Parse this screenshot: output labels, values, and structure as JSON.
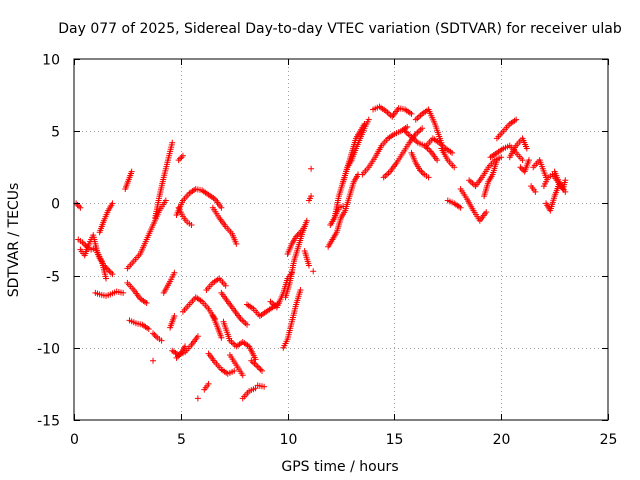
{
  "chart_data": {
    "type": "scatter",
    "title": "Day 077 of 2025, Sidereal Day-to-day VTEC variation (SDTVAR) for receiver ulab",
    "xlabel": "GPS time / hours",
    "ylabel": "SDTVAR / TECUs",
    "xlim": [
      0,
      25
    ],
    "ylim": [
      -15,
      10
    ],
    "xticks": [
      0,
      5,
      10,
      15,
      20,
      25
    ],
    "yticks": [
      -15,
      -10,
      -5,
      0,
      5,
      10
    ],
    "grid": true,
    "marker": "+",
    "color": "#ff0000",
    "tracks": [
      {
        "x": [
          0.2,
          0.4,
          0.6,
          0.8,
          1.0,
          1.2,
          1.4,
          1.6,
          1.8
        ],
        "y": [
          -2.5,
          -2.7,
          -3.0,
          -3.2,
          -3.1,
          -3.8,
          -4.3,
          -4.6,
          -4.9
        ]
      },
      {
        "x": [
          0.3,
          0.5,
          0.7,
          0.9,
          1.1,
          1.3,
          1.5
        ],
        "y": [
          -3.2,
          -3.6,
          -2.8,
          -2.2,
          -3.4,
          -4.0,
          -5.2
        ]
      },
      {
        "x": [
          1.0,
          1.2,
          1.5,
          1.7,
          2.0,
          2.3
        ],
        "y": [
          -6.2,
          -6.3,
          -6.4,
          -6.3,
          -6.1,
          -6.2
        ]
      },
      {
        "x": [
          1.2,
          1.4,
          1.6,
          1.8
        ],
        "y": [
          -2.0,
          -1.2,
          -0.5,
          0.0
        ]
      },
      {
        "x": [
          2.4,
          2.6,
          2.7
        ],
        "y": [
          1.0,
          1.8,
          2.2
        ]
      },
      {
        "x": [
          2.5,
          2.8,
          3.1,
          3.4
        ],
        "y": [
          -5.5,
          -6.0,
          -6.6,
          -6.9
        ]
      },
      {
        "x": [
          2.6,
          2.9,
          3.2,
          3.5
        ],
        "y": [
          -8.1,
          -8.3,
          -8.4,
          -8.7
        ]
      },
      {
        "x": [
          2.5,
          2.8,
          3.1,
          3.4,
          3.7,
          4.0,
          4.3
        ],
        "y": [
          -4.5,
          -4.0,
          -3.5,
          -2.5,
          -1.5,
          -0.5,
          0.2
        ]
      },
      {
        "x": [
          3.7,
          3.9,
          4.1
        ],
        "y": [
          -9.0,
          -9.3,
          -9.5
        ]
      },
      {
        "x": [
          3.8,
          4.0,
          4.2,
          4.4,
          4.6
        ],
        "y": [
          -1.0,
          0.5,
          1.8,
          3.0,
          4.2
        ]
      },
      {
        "x": [
          4.2,
          4.5,
          4.7
        ],
        "y": [
          -6.2,
          -5.4,
          -4.8
        ]
      },
      {
        "x": [
          4.5,
          4.7
        ],
        "y": [
          -8.6,
          -7.8
        ]
      },
      {
        "x": [
          4.6,
          4.9,
          5.2,
          5.5,
          5.8
        ],
        "y": [
          -10.2,
          -10.5,
          -10.3,
          -9.8,
          -9.2
        ]
      },
      {
        "x": [
          4.8,
          5.0,
          5.2
        ],
        "y": [
          -10.7,
          -10.4,
          -9.9
        ]
      },
      {
        "x": [
          4.8,
          5.1,
          5.4,
          5.7,
          6.0,
          6.3,
          6.6,
          6.9
        ],
        "y": [
          -0.8,
          0.2,
          0.7,
          1.0,
          0.9,
          0.6,
          0.3,
          -0.3
        ]
      },
      {
        "x": [
          4.9,
          5.1,
          5.3,
          5.5
        ],
        "y": [
          -0.3,
          -0.9,
          -1.3,
          -1.5
        ]
      },
      {
        "x": [
          4.9,
          5.1
        ],
        "y": [
          3.0,
          3.3
        ]
      },
      {
        "x": [
          5.1,
          5.4,
          5.7,
          6.0,
          6.3,
          6.6
        ],
        "y": [
          -7.5,
          -7.0,
          -6.5,
          -6.8,
          -7.3,
          -8.0
        ]
      },
      {
        "x": [
          3.7
        ],
        "y": [
          -10.9
        ]
      },
      {
        "x": [
          5.8
        ],
        "y": [
          -13.5
        ]
      },
      {
        "x": [
          6.1,
          6.3
        ],
        "y": [
          -12.9,
          -12.5
        ]
      },
      {
        "x": [
          6.2,
          6.5,
          6.8,
          7.1
        ],
        "y": [
          -6.0,
          -5.5,
          -5.2,
          -5.7
        ]
      },
      {
        "x": [
          6.3,
          6.6,
          6.9,
          7.2,
          7.5
        ],
        "y": [
          -10.4,
          -11.0,
          -11.5,
          -11.8,
          -11.6
        ]
      },
      {
        "x": [
          6.5,
          6.7,
          6.9
        ],
        "y": [
          -7.8,
          -8.5,
          -9.3
        ]
      },
      {
        "x": [
          6.5,
          6.8,
          7.1,
          7.4,
          7.6
        ],
        "y": [
          -0.3,
          -1.0,
          -1.6,
          -2.1,
          -2.8
        ]
      },
      {
        "x": [
          6.9,
          7.2,
          7.5,
          7.8,
          8.1
        ],
        "y": [
          -6.2,
          -6.8,
          -7.4,
          -8.0,
          -8.4
        ]
      },
      {
        "x": [
          7.0,
          7.3,
          7.6,
          7.9,
          8.2,
          8.5
        ],
        "y": [
          -8.2,
          -9.5,
          -9.9,
          -9.6,
          -9.9,
          -10.8
        ]
      },
      {
        "x": [
          7.3,
          7.6,
          7.9
        ],
        "y": [
          -10.5,
          -11.2,
          -11.9
        ]
      },
      {
        "x": [
          7.9,
          8.2,
          8.5
        ],
        "y": [
          -13.5,
          -13.0,
          -12.8
        ]
      },
      {
        "x": [
          8.6,
          8.9
        ],
        "y": [
          -12.6,
          -12.7
        ]
      },
      {
        "x": [
          8.1,
          8.4,
          8.7,
          9.0,
          9.3,
          9.6
        ],
        "y": [
          -7.0,
          -7.3,
          -7.8,
          -7.5,
          -7.2,
          -6.9
        ]
      },
      {
        "x": [
          8.3,
          8.6,
          8.8
        ],
        "y": [
          -10.9,
          -11.3,
          -11.6
        ]
      },
      {
        "x": [
          9.2,
          9.5,
          9.8,
          10.0,
          10.2
        ],
        "y": [
          -6.8,
          -7.2,
          -6.2,
          -5.2,
          -4.8
        ]
      },
      {
        "x": [
          9.8,
          10.0,
          10.2,
          10.4,
          10.6
        ],
        "y": [
          -10.0,
          -9.4,
          -8.2,
          -7.0,
          -6.0
        ]
      },
      {
        "x": [
          9.9,
          10.1,
          10.3,
          10.5,
          10.7,
          10.9
        ],
        "y": [
          -6.5,
          -5.5,
          -4.0,
          -3.0,
          -2.0,
          -1.2
        ]
      },
      {
        "x": [
          10.0,
          10.2,
          10.4,
          10.6,
          10.8
        ],
        "y": [
          -3.5,
          -2.8,
          -2.3,
          -2.0,
          -1.6
        ]
      },
      {
        "x": [
          10.8,
          11.0
        ],
        "y": [
          -3.3,
          -4.3
        ]
      },
      {
        "x": [
          11.0,
          11.1
        ],
        "y": [
          0.2,
          0.5
        ]
      },
      {
        "x": [
          11.1
        ],
        "y": [
          2.4
        ]
      },
      {
        "x": [
          11.2
        ],
        "y": [
          -4.7
        ]
      },
      {
        "x": [
          11.9,
          12.1,
          12.3,
          12.5,
          12.7,
          12.9,
          13.1,
          13.3
        ],
        "y": [
          -3.0,
          -2.5,
          -2.0,
          -1.0,
          -0.5,
          0.5,
          1.5,
          2.0
        ]
      },
      {
        "x": [
          12.0,
          12.2,
          12.4,
          12.6
        ],
        "y": [
          -1.5,
          -1.0,
          -0.3,
          -0.2
        ]
      },
      {
        "x": [
          12.2,
          12.4,
          12.6,
          12.8,
          13.0,
          13.2,
          13.4,
          13.6
        ],
        "y": [
          -1.0,
          0.5,
          1.5,
          2.5,
          3.5,
          4.5,
          5.0,
          5.5
        ]
      },
      {
        "x": [
          12.6,
          12.8,
          13.0,
          13.2,
          13.4,
          13.6,
          13.8
        ],
        "y": [
          1.5,
          2.5,
          3.0,
          3.8,
          4.5,
          5.2,
          5.8
        ]
      },
      {
        "x": [
          13.5,
          13.8,
          14.1,
          14.4,
          14.7,
          15.0,
          15.3,
          15.6
        ],
        "y": [
          2.0,
          2.5,
          3.2,
          4.0,
          4.5,
          4.8,
          5.0,
          5.3
        ]
      },
      {
        "x": [
          14.0,
          14.3,
          14.6,
          14.9,
          15.2,
          15.5,
          15.8
        ],
        "y": [
          6.5,
          6.7,
          6.4,
          6.0,
          6.6,
          6.5,
          6.2
        ]
      },
      {
        "x": [
          14.5,
          14.8,
          15.1,
          15.4,
          15.7,
          16.0,
          16.3
        ],
        "y": [
          1.8,
          2.2,
          2.8,
          3.5,
          4.2,
          4.8,
          5.2
        ]
      },
      {
        "x": [
          15.5,
          15.8,
          16.1,
          16.4,
          16.7,
          17.0
        ],
        "y": [
          5.0,
          4.6,
          4.2,
          4.0,
          3.6,
          3.0
        ]
      },
      {
        "x": [
          15.8,
          16.0,
          16.2,
          16.4,
          16.6
        ],
        "y": [
          3.5,
          2.8,
          2.3,
          2.0,
          1.8
        ]
      },
      {
        "x": [
          16.0,
          16.3,
          16.6,
          16.9,
          17.2
        ],
        "y": [
          5.8,
          6.2,
          6.5,
          5.5,
          4.2
        ]
      },
      {
        "x": [
          16.5,
          16.8,
          17.1,
          17.4,
          17.7
        ],
        "y": [
          4.0,
          4.5,
          4.2,
          3.8,
          3.5
        ]
      },
      {
        "x": [
          17.2,
          17.5,
          17.8
        ],
        "y": [
          3.8,
          3.0,
          2.5
        ]
      },
      {
        "x": [
          17.5,
          17.8,
          18.1
        ],
        "y": [
          0.2,
          0.0,
          -0.3
        ]
      },
      {
        "x": [
          18.1,
          18.4,
          18.7,
          19.0,
          19.3
        ],
        "y": [
          1.0,
          0.3,
          -0.5,
          -1.2,
          -0.6
        ]
      },
      {
        "x": [
          18.5,
          18.8,
          19.1,
          19.4,
          19.7,
          20.0
        ],
        "y": [
          1.6,
          1.2,
          1.8,
          2.5,
          3.0,
          3.2
        ]
      },
      {
        "x": [
          19.2,
          19.4,
          19.6,
          19.8
        ],
        "y": [
          0.5,
          1.5,
          2.0,
          3.0
        ]
      },
      {
        "x": [
          19.5,
          19.8,
          20.1,
          20.4,
          20.7,
          21.0
        ],
        "y": [
          3.2,
          3.5,
          3.8,
          4.0,
          3.5,
          3.0
        ]
      },
      {
        "x": [
          19.8,
          20.1,
          20.4,
          20.7
        ],
        "y": [
          4.5,
          5.0,
          5.5,
          5.8
        ]
      },
      {
        "x": [
          20.4,
          20.7,
          21.0,
          21.2
        ],
        "y": [
          3.2,
          4.0,
          4.5,
          3.8
        ]
      },
      {
        "x": [
          20.9,
          21.1,
          21.3
        ],
        "y": [
          2.5,
          2.2,
          3.0
        ]
      },
      {
        "x": [
          21.5,
          21.8,
          22.1
        ],
        "y": [
          2.5,
          3.0,
          1.8
        ]
      },
      {
        "x": [
          21.4,
          21.6
        ],
        "y": [
          1.2,
          0.8
        ]
      },
      {
        "x": [
          22.0,
          22.2,
          22.4,
          22.6,
          22.8,
          23.0
        ],
        "y": [
          1.2,
          1.8,
          2.0,
          1.6,
          1.2,
          0.8
        ]
      },
      {
        "x": [
          22.1,
          22.3,
          22.5,
          22.7
        ],
        "y": [
          0.0,
          -0.5,
          0.5,
          1.3
        ]
      },
      {
        "x": [
          22.5,
          22.7,
          22.9,
          23.0
        ],
        "y": [
          2.2,
          1.5,
          1.0,
          1.6
        ]
      },
      {
        "x": [
          0.1,
          0.3
        ],
        "y": [
          0.0,
          -0.3
        ]
      }
    ]
  }
}
